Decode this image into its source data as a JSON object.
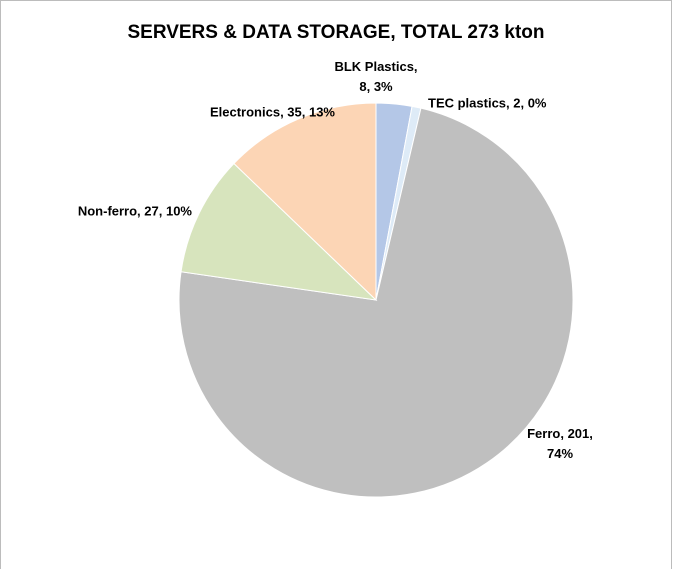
{
  "chart_data": {
    "type": "pie",
    "title": "SERVERS & DATA STORAGE, TOTAL 273 kton",
    "values": [
      8,
      2,
      201,
      27,
      35
    ],
    "value_labels": [
      "BLK Plastics, 8, 3%",
      "TEC plastics, 2, 0%",
      "Ferro, 201, 74%",
      "Non-ferro, 27, 10%",
      "Electronics, 35, 13%"
    ],
    "colors": [
      "#b4c7e7",
      "#deebf7",
      "#bfbfbf",
      "#d7e4bd",
      "#fcd5b5"
    ]
  }
}
